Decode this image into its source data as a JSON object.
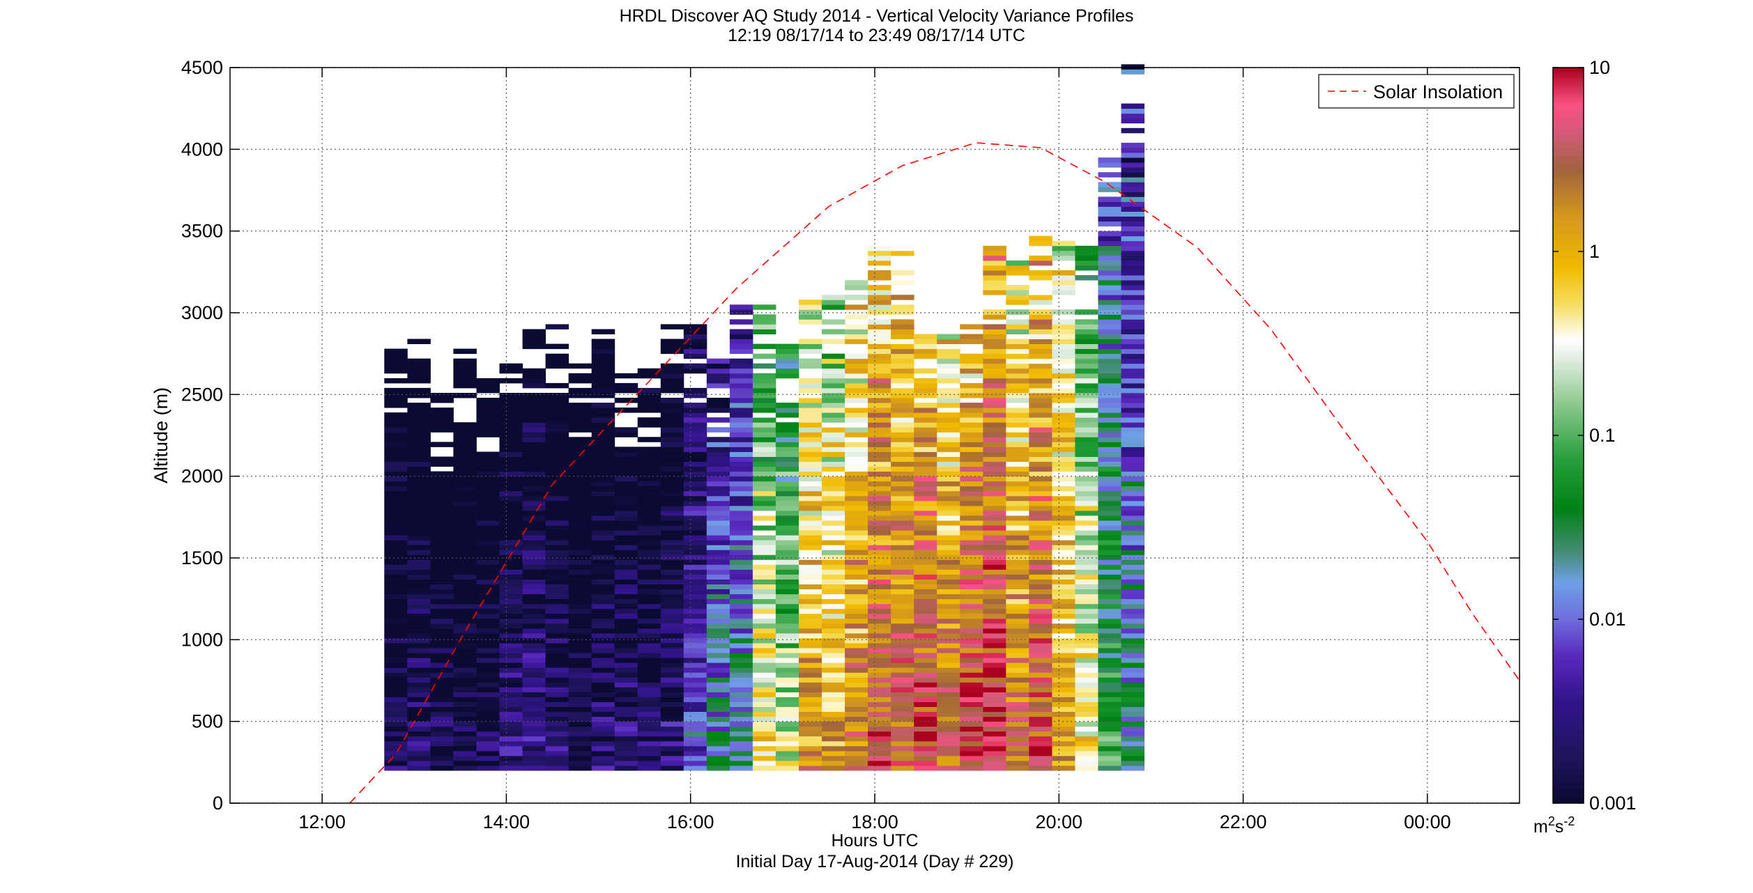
{
  "chart_data": {
    "type": "heatmap",
    "title": "HRDL Discover AQ Study 2014 - Vertical Velocity Variance Profiles",
    "subtitle": "12:19 08/17/14 to 23:49 08/17/14  UTC",
    "xlabel": "Hours UTC",
    "xlabel2": "Initial Day 17-Aug-2014 (Day # 229)",
    "ylabel": "Altitude (m)",
    "colorbar_unit": "m2s-2",
    "xlim": [
      11.0,
      25.0
    ],
    "ylim": [
      0,
      4500
    ],
    "x_ticks": [
      "12:00",
      "14:00",
      "16:00",
      "18:00",
      "20:00",
      "22:00",
      "00:00"
    ],
    "x_tick_values": [
      12,
      14,
      16,
      18,
      20,
      22,
      24
    ],
    "y_ticks": [
      0,
      500,
      1000,
      1500,
      2000,
      2500,
      3000,
      3500,
      4000,
      4500
    ],
    "colorbar_ticks": [
      "0.001",
      "0.01",
      "0.1",
      "1",
      "10"
    ],
    "color_scale": "log",
    "color_range": [
      0.001,
      10
    ],
    "grid": true,
    "legend": {
      "position": "top-right",
      "entries": [
        "Solar Insolation"
      ]
    },
    "line_series": {
      "name": "Solar Insolation",
      "style": "dashed",
      "color": "#ff0000",
      "peak": [
        19.1,
        4040
      ],
      "points": [
        [
          12.3,
          0
        ],
        [
          12.8,
          300
        ],
        [
          13.5,
          1000
        ],
        [
          14.5,
          1950
        ],
        [
          15.5,
          2550
        ],
        [
          16.5,
          3150
        ],
        [
          17.5,
          3650
        ],
        [
          18.3,
          3900
        ],
        [
          19.1,
          4040
        ],
        [
          19.8,
          4010
        ],
        [
          20.5,
          3800
        ],
        [
          21.5,
          3400
        ],
        [
          22.3,
          2900
        ],
        [
          23.2,
          2200
        ],
        [
          24.0,
          1600
        ],
        [
          24.5,
          1150
        ],
        [
          25.0,
          750
        ]
      ]
    },
    "profiles": [
      {
        "time": 12.8,
        "top": 2810,
        "base_log": -2.7
      },
      {
        "time": 13.05,
        "top": 2870,
        "base_log": -2.6
      },
      {
        "time": 13.3,
        "top": 2500,
        "base_log": -2.7
      },
      {
        "time": 13.55,
        "top": 2760,
        "base_log": -2.8
      },
      {
        "time": 13.8,
        "top": 2620,
        "base_log": -2.7
      },
      {
        "time": 14.05,
        "top": 2700,
        "base_log": -2.5
      },
      {
        "time": 14.3,
        "top": 2900,
        "base_log": -2.4
      },
      {
        "time": 14.55,
        "top": 2930,
        "base_log": -2.6
      },
      {
        "time": 14.8,
        "top": 2700,
        "base_log": -2.8
      },
      {
        "time": 15.05,
        "top": 2930,
        "base_log": -2.6
      },
      {
        "time": 15.3,
        "top": 2650,
        "base_log": -2.5
      },
      {
        "time": 15.55,
        "top": 2650,
        "base_log": -2.6
      },
      {
        "time": 15.8,
        "top": 2930,
        "base_log": -2.5
      },
      {
        "time": 16.05,
        "top": 2930,
        "base_log": -2.0
      },
      {
        "time": 16.3,
        "top": 2720,
        "base_log": -1.7
      },
      {
        "time": 16.55,
        "top": 3080,
        "base_log": -1.6
      },
      {
        "time": 16.8,
        "top": 3080,
        "base_log": -0.3
      },
      {
        "time": 17.05,
        "top": 2800,
        "base_log": -0.6
      },
      {
        "time": 17.3,
        "top": 3080,
        "base_log": 0.2
      },
      {
        "time": 17.55,
        "top": 3100,
        "base_log": 0.1
      },
      {
        "time": 17.8,
        "top": 3200,
        "base_log": 0.4
      },
      {
        "time": 18.05,
        "top": 3400,
        "base_log": 0.7
      },
      {
        "time": 18.3,
        "top": 3410,
        "base_log": 0.6
      },
      {
        "time": 18.55,
        "top": 2900,
        "base_log": 0.8
      },
      {
        "time": 18.8,
        "top": 2870,
        "base_log": 0.5
      },
      {
        "time": 19.05,
        "top": 2930,
        "base_log": 0.8
      },
      {
        "time": 19.3,
        "top": 3410,
        "base_log": 0.9
      },
      {
        "time": 19.55,
        "top": 3330,
        "base_log": 0.4
      },
      {
        "time": 19.8,
        "top": 3500,
        "base_log": 0.7
      },
      {
        "time": 20.05,
        "top": 3450,
        "base_log": 0.2
      },
      {
        "time": 20.3,
        "top": 3450,
        "base_log": -0.3
      },
      {
        "time": 20.55,
        "top": 3930,
        "base_log": -1.2
      },
      {
        "time": 20.8,
        "top": 4500,
        "base_log": -1.6
      }
    ]
  }
}
